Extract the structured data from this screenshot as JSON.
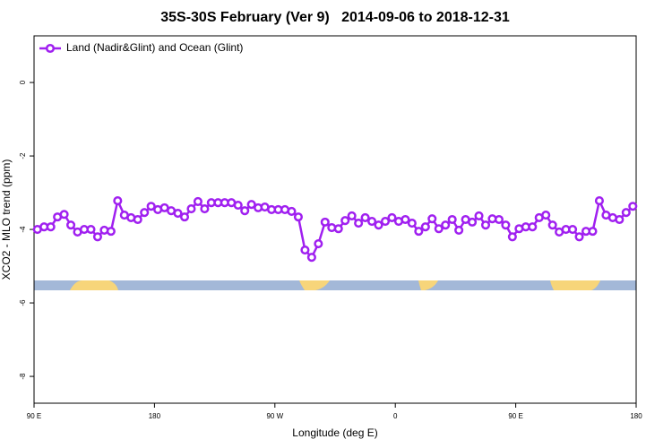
{
  "chart_data": {
    "type": "line",
    "title": "35S-30S February (Ver 9)   2014-09-06 to 2018-12-31",
    "xlabel": "Longitude (deg E)",
    "ylabel": "XCO2 - MLO trend (ppm)",
    "xlim": [
      90,
      540
    ],
    "xticks": [
      {
        "value": 90,
        "label": "90 E"
      },
      180,
      {
        "value": 270,
        "label": "90 W"
      },
      {
        "value": 360,
        "label": "0"
      },
      {
        "value": 450,
        "label": "90 E"
      },
      {
        "value": 540,
        "label": "180"
      }
    ],
    "ylim": [
      -8.73,
      1.27
    ],
    "yticks": [
      0,
      -2,
      -4,
      -6,
      -8
    ],
    "legend": "top-left",
    "x": [
      92.5,
      97.5,
      102.5,
      107.5,
      112.5,
      117.5,
      122.5,
      127.5,
      132.5,
      137.5,
      142.5,
      147.5,
      152.5,
      157.5,
      162.5,
      167.5,
      172.5,
      177.5,
      182.5,
      187.5,
      192.5,
      197.5,
      202.5,
      207.5,
      212.5,
      217.5,
      222.5,
      227.5,
      232.5,
      237.5,
      242.5,
      247.5,
      252.5,
      257.5,
      262.5,
      267.5,
      272.5,
      277.5,
      282.5,
      287.5,
      292.5,
      297.5,
      302.5,
      307.5,
      312.5,
      317.5,
      322.5,
      327.5,
      332.5,
      337.5,
      342.5,
      347.5,
      352.5,
      357.5,
      362.5,
      367.5,
      372.5,
      377.5,
      382.5,
      387.5,
      392.5,
      397.5,
      402.5,
      407.5,
      412.5,
      417.5,
      422.5,
      427.5,
      432.5,
      437.5,
      442.5,
      447.5,
      452.5,
      457.5,
      462.5,
      467.5,
      472.5,
      477.5,
      482.5,
      487.5,
      492.5,
      497.5,
      502.5,
      507.5,
      512.5,
      517.5,
      522.5,
      527.5,
      532.5,
      537.5
    ],
    "series": [
      {
        "name": "Land (Nadir&Glint) and Ocean (Glint)",
        "color": "#a020f0",
        "values": [
          -4.0,
          -3.93,
          -3.93,
          -3.66,
          -3.59,
          -3.88,
          -4.07,
          -4.0,
          -4.0,
          -4.2,
          -4.02,
          -4.05,
          -3.22,
          -3.61,
          -3.68,
          -3.73,
          -3.54,
          -3.37,
          -3.46,
          -3.41,
          -3.49,
          -3.56,
          -3.66,
          -3.44,
          -3.24,
          -3.44,
          -3.27,
          -3.27,
          -3.27,
          -3.27,
          -3.34,
          -3.49,
          -3.32,
          -3.41,
          -3.39,
          -3.46,
          -3.46,
          -3.46,
          -3.51,
          -3.66,
          -4.56,
          -4.76,
          -4.39,
          -3.8,
          -3.95,
          -3.98,
          -3.76,
          -3.63,
          -3.83,
          -3.68,
          -3.78,
          -3.88,
          -3.78,
          -3.68,
          -3.78,
          -3.73,
          -3.83,
          -4.05,
          -3.93,
          -3.71,
          -3.98,
          -3.88,
          -3.73,
          -4.02,
          -3.73,
          -3.8,
          -3.63,
          -3.88,
          -3.71,
          -3.73,
          -3.88,
          -4.2,
          -3.98,
          -3.93,
          -3.93,
          -3.68,
          -3.61,
          -3.88,
          -4.07,
          -4.0,
          -4.0,
          -4.2,
          -4.05,
          -4.05,
          -3.22,
          -3.61,
          -3.68,
          -3.73,
          -3.54,
          -3.37
        ]
      }
    ]
  }
}
